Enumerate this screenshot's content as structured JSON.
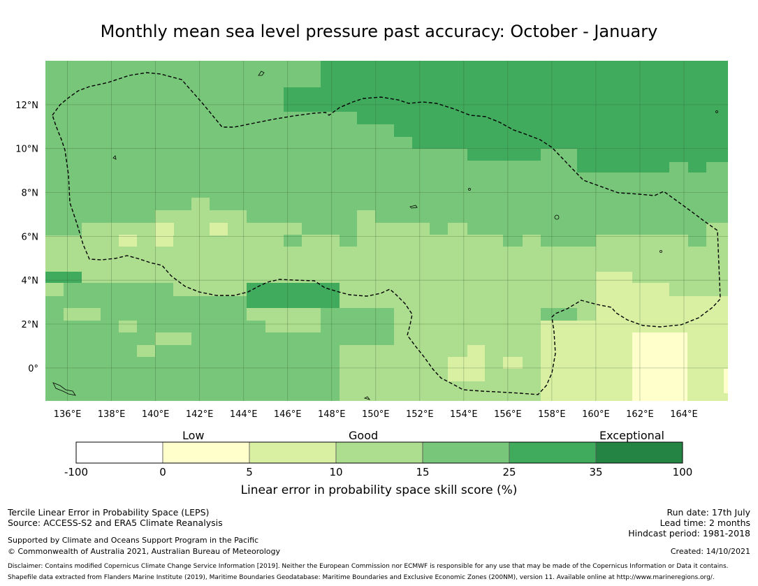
{
  "title": "Monthly mean sea level pressure past accuracy: October - January",
  "map": {
    "lon_ticks": [
      "136°E",
      "138°E",
      "140°E",
      "142°E",
      "144°E",
      "146°E",
      "148°E",
      "150°E",
      "152°E",
      "154°E",
      "156°E",
      "158°E",
      "160°E",
      "162°E",
      "164°E"
    ],
    "lat_ticks": [
      "12°N",
      "10°N",
      "8°N",
      "6°N",
      "4°N",
      "2°N",
      "0°"
    ],
    "lon_range": [
      135,
      166
    ],
    "lat_range": [
      -1.5,
      14
    ],
    "boundary_style": "dashed black line",
    "grid": true,
    "category_colors": {
      "c0": "#ffffcc",
      "c1": "#d9f0a3",
      "c2": "#addd8e",
      "c3": "#78c679",
      "c4": "#41ab5d",
      "c5": "#238443"
    }
  },
  "colorbar": {
    "category_labels": [
      "Low",
      "Good",
      "Exceptional"
    ],
    "ticks": [
      "-100",
      "0",
      "5",
      "10",
      "15",
      "25",
      "35",
      "100"
    ],
    "colors": [
      "#ffffff",
      "#ffffcc",
      "#d9f0a3",
      "#addd8e",
      "#78c679",
      "#41ab5d",
      "#238443"
    ],
    "title": "Linear error in probability space skill score (%)"
  },
  "footer": {
    "line1": "Tercile Linear Error in Probability Space (LEPS)",
    "line2": "Source: ACCESS-S2 and ERA5 Climate Reanalysis",
    "support": "Supported by Climate and Oceans Support Program in the Pacific",
    "copyright": "© Commonwealth of Australia 2021, Australian Bureau of Meteorology",
    "run_date": "Run date: 17th July",
    "lead_time": "Lead time: 2 months",
    "hindcast": "Hindcast period: 1981-2018",
    "created": "Created: 14/10/2021",
    "disclaimer": "Disclaimer: Contains modified Copernicus Climate Change Service Information [2019]. Neither the European Commission nor ECMWF is responsible for any use that may be made of the Copernicus Information or Data it contains.",
    "shapefile": "Shapefile data extracted from Flanders Marine Institute (2019), Maritime Boundaries Geodatabase: Maritime Boundaries and Exclusive Economic Zones (200NM), version 11. Available online at http://www.marineregions.org/."
  }
}
